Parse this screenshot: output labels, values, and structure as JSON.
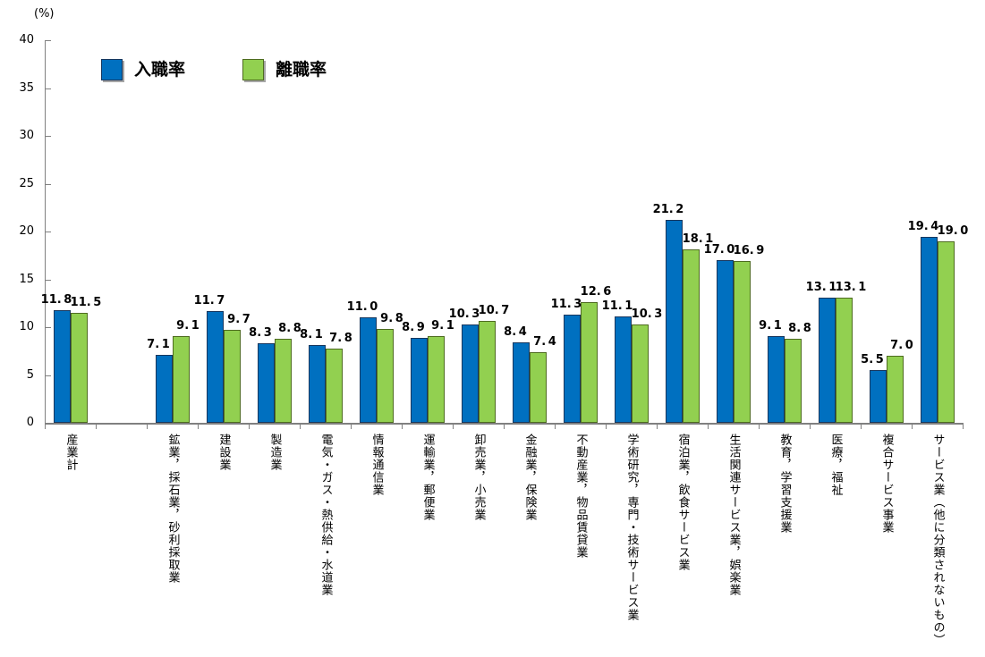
{
  "chart_data": {
    "type": "bar",
    "title": "",
    "ylabel": "(%)",
    "xlabel": "",
    "ylim": [
      0,
      40
    ],
    "yticks": [
      0,
      5,
      10,
      15,
      20,
      25,
      30,
      35,
      40
    ],
    "grid": false,
    "legend_position": "top-left",
    "gap_after_first_category": true,
    "categories": [
      "産業計",
      "鉱業，採石業，砂利採取業",
      "建設業",
      "製造業",
      "電気・ガス・熱供給・水道業",
      "情報通信業",
      "運輸業，郵便業",
      "卸売業，小売業",
      "金融業，保険業",
      "不動産業，物品賃貸業",
      "学術研究，専門・技術サービス業",
      "宿泊業，飲食サービス業",
      "生活関連サービス業，娯楽業",
      "教育，学習支援業",
      "医療，福祉",
      "複合サービス事業",
      "サービス業（他に分類されないもの）"
    ],
    "series": [
      {
        "name": "入職率",
        "color": "#0070C0",
        "border_color": "#17375E",
        "values": [
          11.8,
          7.1,
          11.7,
          8.3,
          8.1,
          11.0,
          8.9,
          10.3,
          8.4,
          11.3,
          11.1,
          21.2,
          17.0,
          9.1,
          13.1,
          5.5,
          19.4
        ]
      },
      {
        "name": "離職率",
        "color": "#92D050",
        "border_color": "#4E6B20",
        "values": [
          11.5,
          9.1,
          9.7,
          8.8,
          7.8,
          9.8,
          9.1,
          10.7,
          7.4,
          12.6,
          10.3,
          18.1,
          16.9,
          8.8,
          13.1,
          7.0,
          19.0
        ]
      }
    ]
  }
}
